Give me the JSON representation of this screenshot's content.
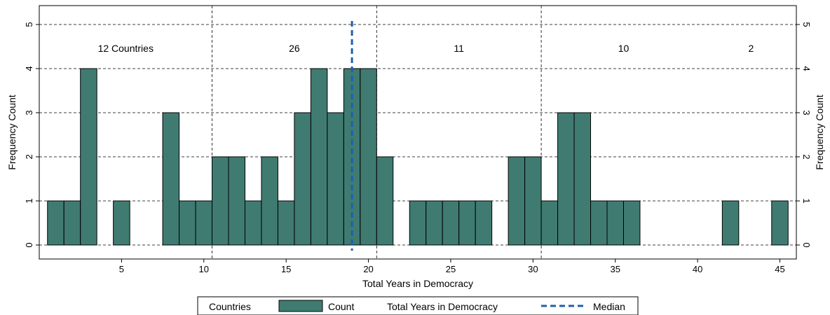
{
  "chart_data": {
    "type": "bar",
    "xlabel": "Total Years in Democracy",
    "ylabel_left": "Frequency Count",
    "ylabel_right": "Frequency Count",
    "xlim": [
      0,
      46
    ],
    "ylim": [
      0,
      5.2
    ],
    "x_ticks": [
      5,
      10,
      15,
      20,
      25,
      30,
      35,
      40,
      45
    ],
    "y_ticks": [
      0,
      1,
      2,
      3,
      4,
      5
    ],
    "bar_width": 1,
    "bar_color": "#407B72",
    "median_color": "#1F5FAF",
    "x": [
      1,
      2,
      3,
      5,
      8,
      9,
      10,
      11,
      12,
      13,
      14,
      15,
      16,
      17,
      18,
      19,
      20,
      21,
      23,
      24,
      25,
      26,
      27,
      29,
      30,
      31,
      32,
      33,
      34,
      35,
      36,
      42,
      45
    ],
    "values": [
      1,
      1,
      4,
      1,
      3,
      1,
      1,
      2,
      2,
      1,
      2,
      1,
      3,
      4,
      3,
      4,
      4,
      2,
      1,
      1,
      1,
      1,
      1,
      2,
      2,
      1,
      3,
      3,
      1,
      1,
      1,
      1,
      1
    ],
    "group_dividers": [
      10.5,
      20.5,
      30.5
    ],
    "group_labels": [
      {
        "text": "12 Countries",
        "x": 5.25
      },
      {
        "text": "26",
        "x": 15.5
      },
      {
        "text": "11",
        "x": 25.5
      },
      {
        "text": "10",
        "x": 35.5
      },
      {
        "text": "2",
        "x": 43.25
      }
    ],
    "median": 19,
    "grid": true,
    "legend_position": "bottom",
    "legend": {
      "title1": "Countries",
      "bar_entry": "Count",
      "title2": "Total Years in Democracy",
      "line_entry": "Median"
    }
  }
}
